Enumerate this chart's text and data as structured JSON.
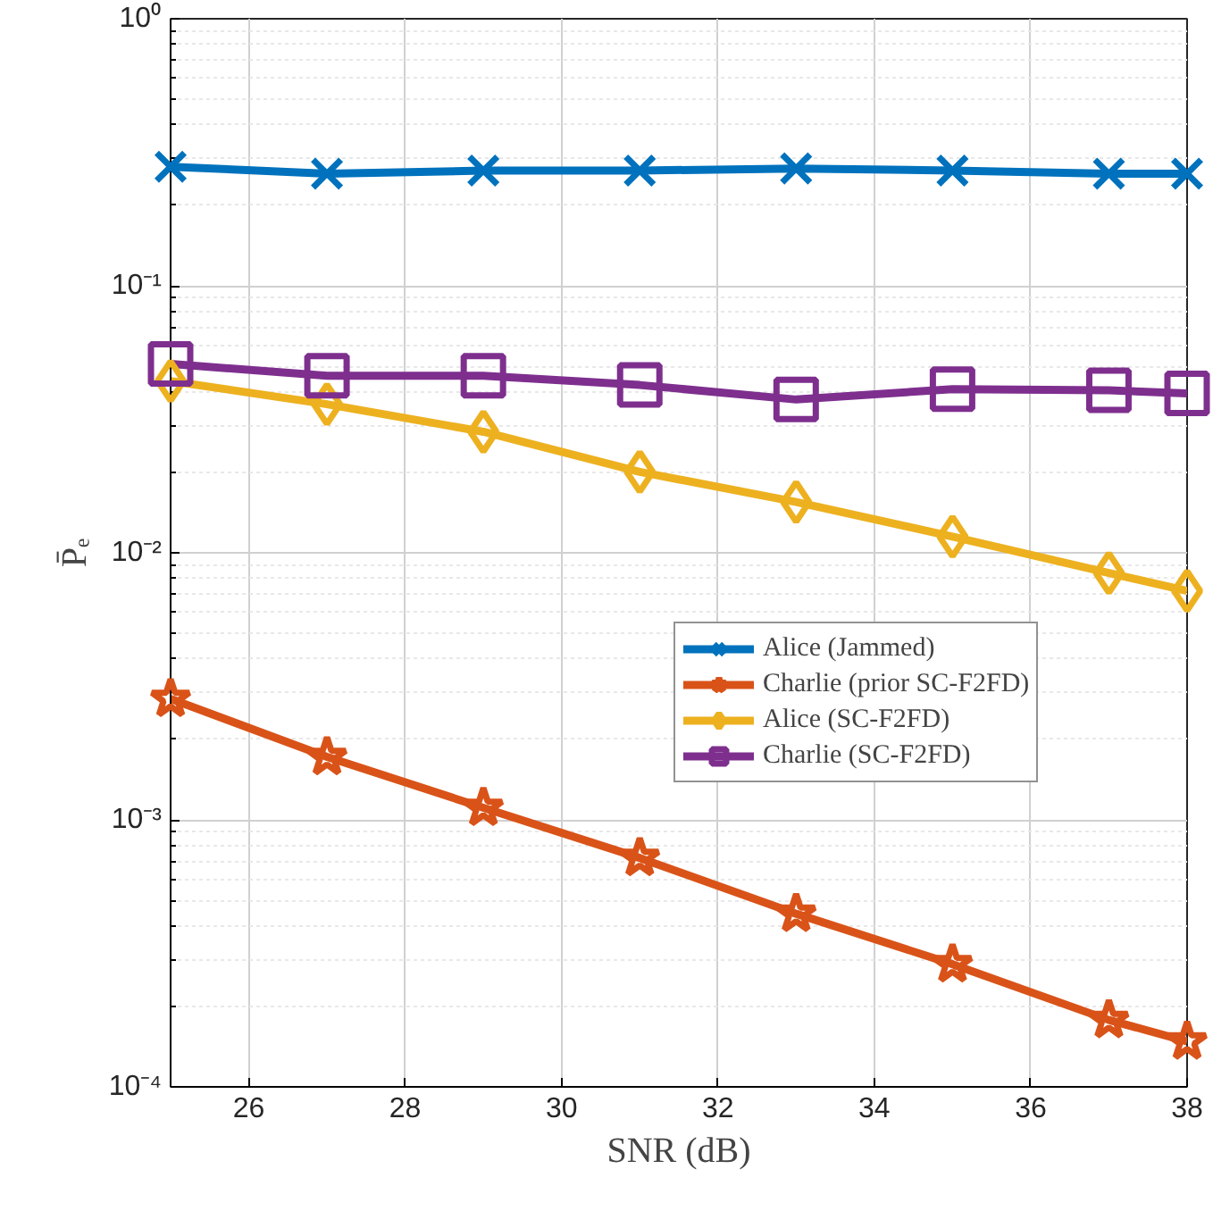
{
  "chart_data": {
    "type": "line",
    "xlabel": "SNR (dB)",
    "ylabel": "P̄ₑ",
    "log": "y",
    "grid": true,
    "legend": "right",
    "line_style": "solid",
    "x": [
      25,
      27,
      29,
      31,
      33,
      35,
      37,
      38
    ],
    "xlim": [
      25,
      38
    ],
    "xticks": [
      26,
      28,
      30,
      32,
      34,
      36,
      38
    ],
    "ylim": [
      0.0001,
      1
    ],
    "yticks": [
      {
        "value": 0.0001,
        "label": "10⁻⁴"
      },
      {
        "value": 0.001,
        "label": "10⁻³"
      },
      {
        "value": 0.01,
        "label": "10⁻²"
      },
      {
        "value": 0.1,
        "label": "10⁻¹"
      },
      {
        "value": 1,
        "label": "10⁰"
      }
    ],
    "series": [
      {
        "name": "Alice (Jammed)",
        "color": "#0072bd",
        "marker": "cross",
        "values": [
          0.279,
          0.263,
          0.27,
          0.27,
          0.275,
          0.27,
          0.263,
          0.263
        ]
      },
      {
        "name": "Charlie (prior SC-F2FD)",
        "color": "#d95319",
        "marker": "star",
        "values": [
          0.00284,
          0.00172,
          0.00111,
          0.00072,
          0.000445,
          0.000288,
          0.000178,
          0.000148
        ]
      },
      {
        "name": "Alice (SC-F2FD)",
        "color": "#edb120",
        "marker": "diamond",
        "values": [
          0.044,
          0.036,
          0.0284,
          0.0201,
          0.0155,
          0.0115,
          0.0084,
          0.0072
        ]
      },
      {
        "name": "Charlie (SC-F2FD)",
        "color": "#7e2f8e",
        "marker": "square",
        "values": [
          0.051,
          0.046,
          0.046,
          0.0425,
          0.0375,
          0.041,
          0.0406,
          0.0395
        ]
      }
    ]
  }
}
